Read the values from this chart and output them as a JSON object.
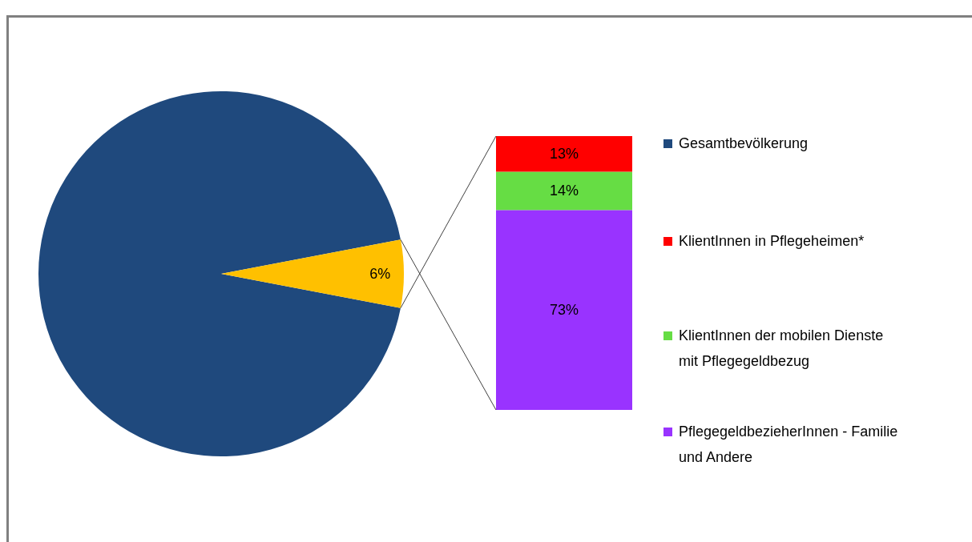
{
  "chart_data": [
    {
      "type": "pie",
      "categories": [
        "Gesamtbevölkerung",
        null
      ],
      "values": [
        94,
        6
      ],
      "colors": [
        "#1f497d",
        "#ffc000"
      ],
      "value_labels": [
        null,
        "6%"
      ],
      "legend": "right"
    },
    {
      "type": "bar",
      "stacked": true,
      "categories": [
        null
      ],
      "legend": "right",
      "series": [
        {
          "name": "PflegegeldbezieherInnen - Familie und Andere",
          "color": "#9933ff",
          "values": [
            73
          ],
          "value_labels": [
            "73%"
          ]
        },
        {
          "name": "KlientInnen der mobilen Dienste mit Pflegegeldbezug",
          "color": "#66dd44",
          "values": [
            14
          ],
          "value_labels": [
            "14%"
          ]
        },
        {
          "name": "KlientInnen in Pflegeheimen*",
          "color": "#ff0000",
          "values": [
            13
          ],
          "value_labels": [
            "13%"
          ]
        }
      ]
    }
  ]
}
